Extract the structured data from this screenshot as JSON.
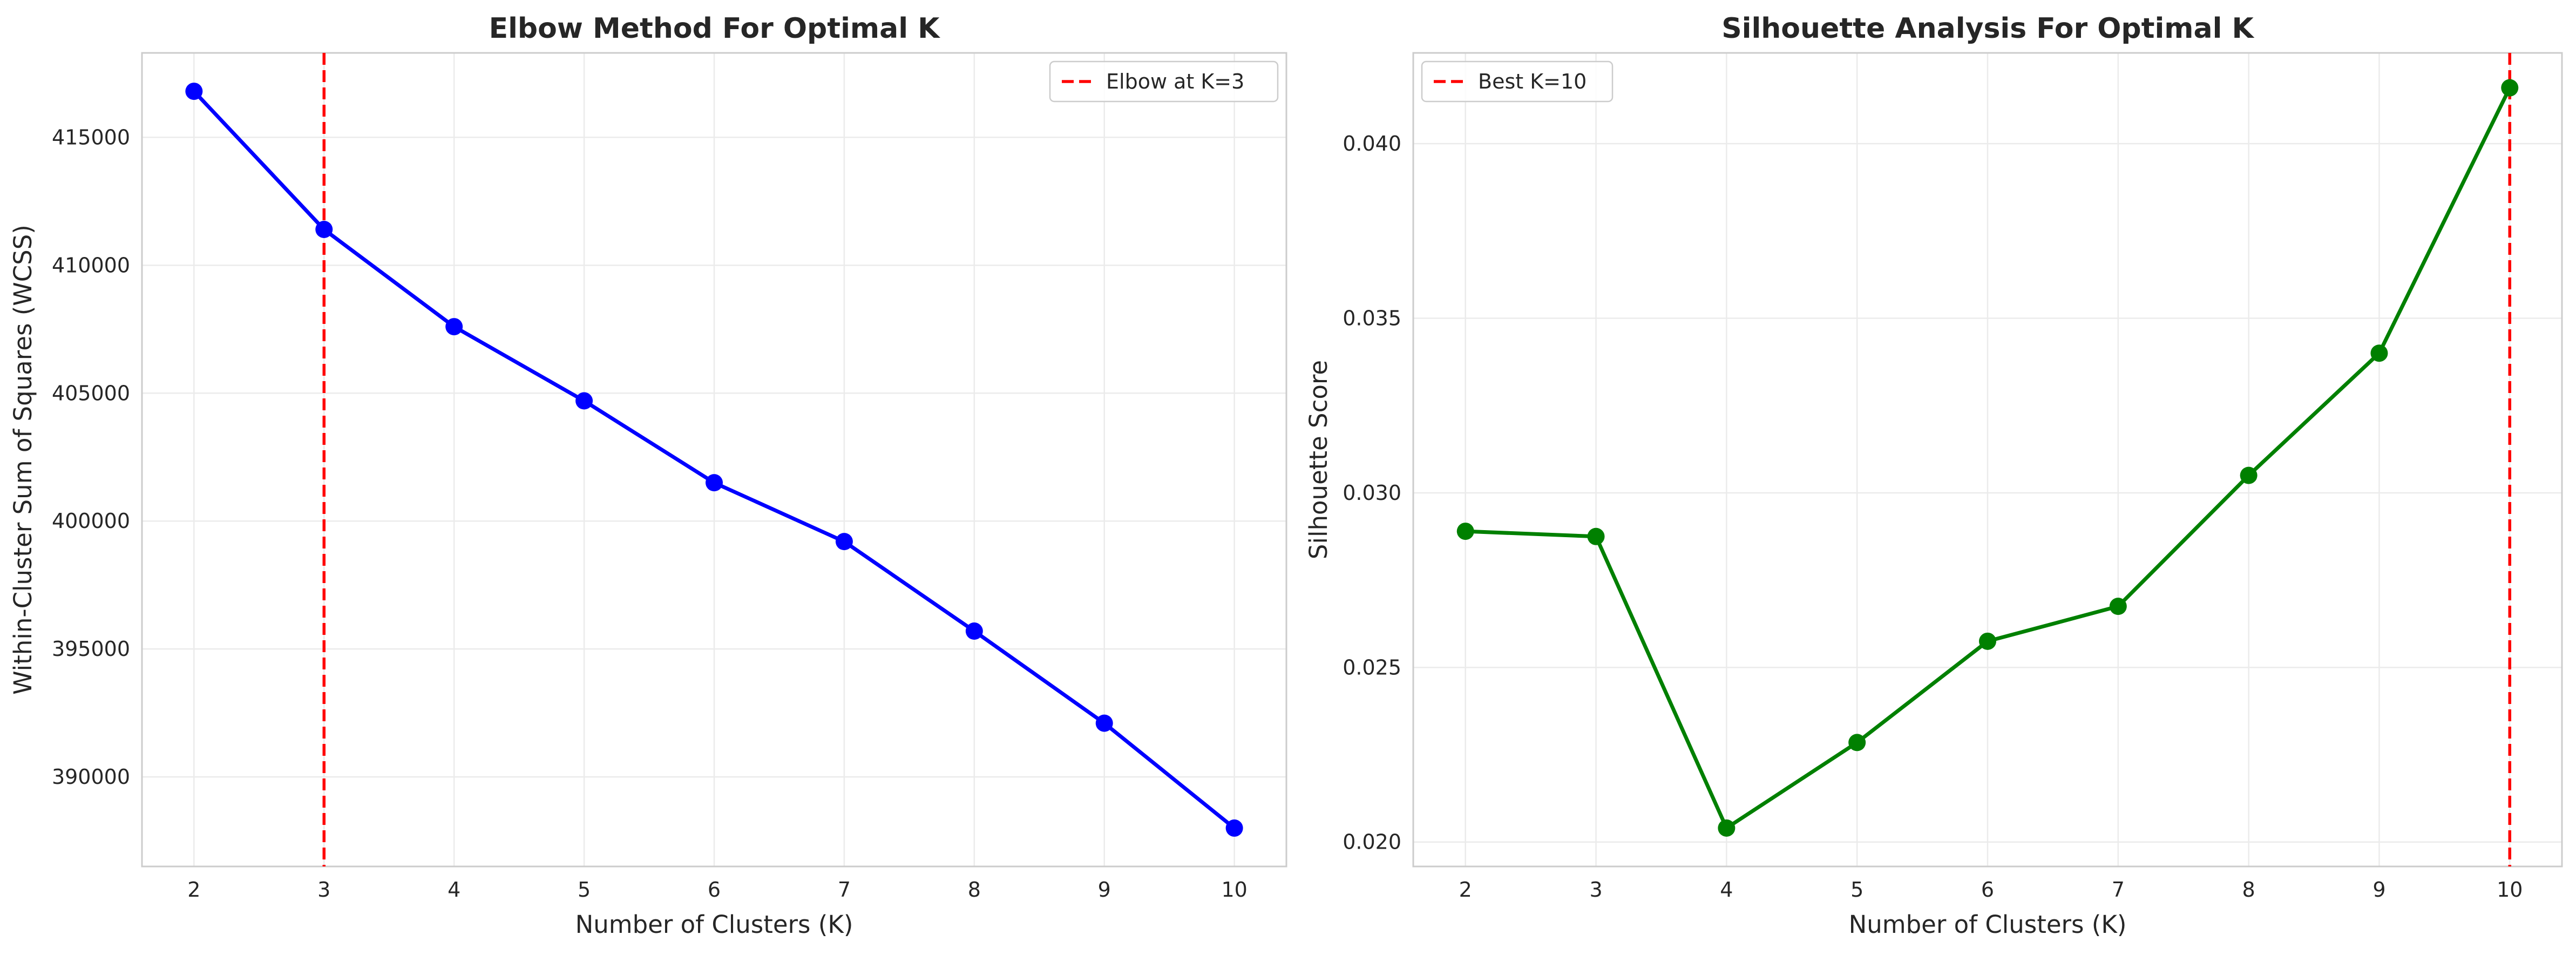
{
  "chart_data": [
    {
      "type": "line",
      "title": "Elbow Method For Optimal K",
      "xlabel": "Number of Clusters (K)",
      "ylabel": "Within-Cluster Sum of Squares (WCSS)",
      "x": [
        2,
        3,
        4,
        5,
        6,
        7,
        8,
        9,
        10
      ],
      "series": [
        {
          "values": [
            416800,
            411400,
            407600,
            404700,
            401500,
            399200,
            395700,
            392100,
            388000
          ],
          "color": "#0000ff"
        }
      ],
      "xlim": [
        1.6,
        10.4
      ],
      "ylim": [
        386500,
        418300
      ],
      "xticks": [
        2,
        3,
        4,
        5,
        6,
        7,
        8,
        9,
        10
      ],
      "yticks": [
        390000,
        395000,
        400000,
        405000,
        410000,
        415000
      ],
      "ytick_labels": [
        "390000",
        "395000",
        "400000",
        "405000",
        "410000",
        "415000"
      ],
      "vline": {
        "x": 3,
        "label": "Elbow at K=3",
        "color": "#ff0000"
      },
      "legend": "top-right",
      "grid": true
    },
    {
      "type": "line",
      "title": "Silhouette Analysis For Optimal K",
      "xlabel": "Number of Clusters (K)",
      "ylabel": "Silhouette Score",
      "x": [
        2,
        3,
        4,
        5,
        6,
        7,
        8,
        9,
        10
      ],
      "series": [
        {
          "values": [
            0.0289,
            0.02875,
            0.0204,
            0.02285,
            0.02575,
            0.02675,
            0.0305,
            0.034,
            0.0416
          ],
          "color": "#008000"
        }
      ],
      "xlim": [
        1.6,
        10.4
      ],
      "ylim": [
        0.0193,
        0.0426
      ],
      "xticks": [
        2,
        3,
        4,
        5,
        6,
        7,
        8,
        9,
        10
      ],
      "yticks": [
        0.02,
        0.025,
        0.03,
        0.035,
        0.04
      ],
      "ytick_labels": [
        "0.020",
        "0.025",
        "0.030",
        "0.035",
        "0.040"
      ],
      "vline": {
        "x": 10,
        "label": "Best K=10",
        "color": "#ff0000"
      },
      "legend": "top-left",
      "grid": true
    }
  ]
}
